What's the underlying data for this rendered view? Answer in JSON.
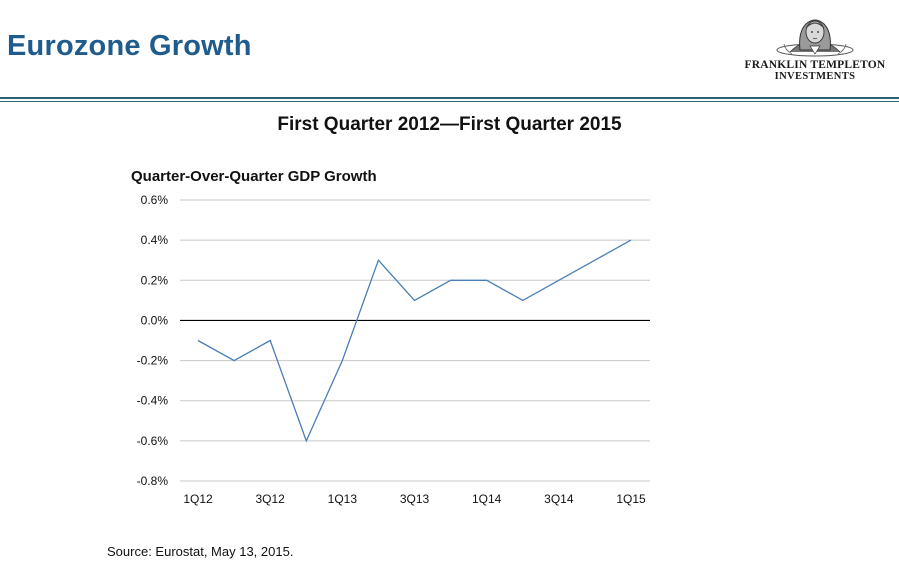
{
  "header": {
    "title": "Eurozone Growth",
    "logo": {
      "line1": "FRANKLIN TEMPLETON",
      "line2": "INVESTMENTS",
      "icon": "franklin-portrait-logo-icon"
    },
    "rule_color": "#2e5f7a",
    "title_color": "#1f5b8c"
  },
  "chart_data": {
    "type": "line",
    "title": "First Quarter 2012—First Quarter 2015",
    "ylabel": "Quarter-Over-Quarter GDP Growth",
    "xlabel": "",
    "x": [
      "1Q12",
      "2Q12",
      "3Q12",
      "4Q12",
      "1Q13",
      "2Q13",
      "3Q13",
      "4Q13",
      "1Q14",
      "2Q14",
      "3Q14",
      "4Q14",
      "1Q15"
    ],
    "x_tick_labels": [
      "1Q12",
      "3Q12",
      "1Q13",
      "3Q13",
      "1Q14",
      "3Q14",
      "1Q15"
    ],
    "y_tick_labels": [
      "0.6%",
      "0.4%",
      "0.2%",
      "0.0%",
      "-0.2%",
      "-0.4%",
      "-0.6%",
      "-0.8%"
    ],
    "y_ticks": [
      0.6,
      0.4,
      0.2,
      0.0,
      -0.2,
      -0.4,
      -0.6,
      -0.8
    ],
    "ylim": [
      -0.8,
      0.6
    ],
    "grid": true,
    "legend": "none",
    "series": [
      {
        "values": [
          -0.1,
          -0.2,
          -0.1,
          -0.6,
          -0.2,
          0.3,
          0.1,
          0.2,
          0.2,
          0.1,
          0.2,
          0.3,
          0.4
        ],
        "color": "#4a7fb5"
      }
    ],
    "gridline_color": "#c8c8c8",
    "zero_line_color": "#000000"
  },
  "footer": {
    "source": "Source: Eurostat, May 13, 2015."
  }
}
